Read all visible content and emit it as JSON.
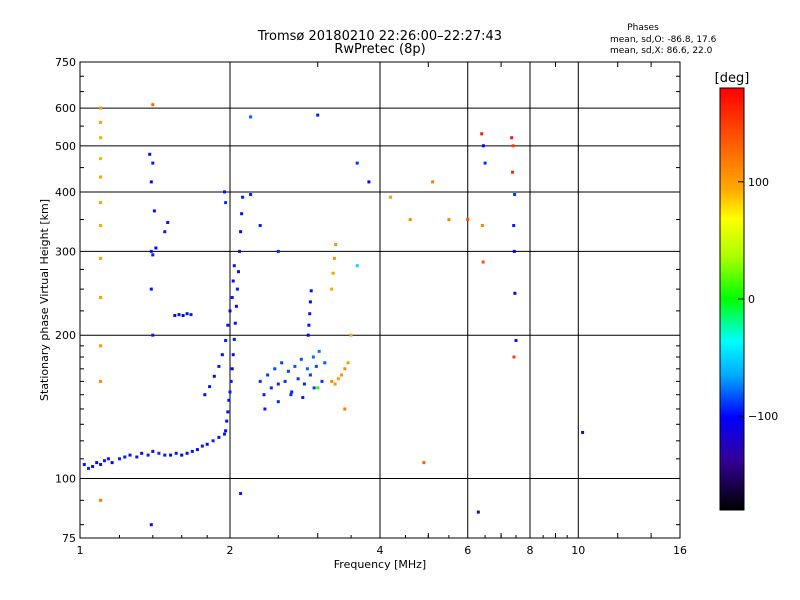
{
  "header": {
    "title_line1": "Tromsø 20180210 22:26:00–22:27:43",
    "title_line2": "RwPretec (8p)"
  },
  "stats": {
    "heading": "Phases",
    "line_o": "mean, sd,O:  -86.8, 17.6",
    "line_x": "mean, sd,X:  86.6, 22.0"
  },
  "colorbar": {
    "unit": "[deg]",
    "range": [
      -180,
      180
    ],
    "ticks": [
      100,
      0,
      -100
    ],
    "tick_labels": [
      "100",
      "0",
      "−100"
    ]
  },
  "chart_data": {
    "type": "scatter",
    "xlabel": "Frequency [MHz]",
    "ylabel": "Stationary phase Virtual Height [km]",
    "x_scale": "log",
    "y_scale": "log",
    "xlim": [
      1,
      16
    ],
    "ylim": [
      75,
      750
    ],
    "xticks": [
      1,
      2,
      4,
      6,
      8,
      10,
      16
    ],
    "xtick_labels": [
      "1",
      "2",
      "4",
      "6",
      "8",
      "10",
      "16"
    ],
    "yticks": [
      75,
      100,
      200,
      300,
      400,
      500,
      600,
      750
    ],
    "ytick_labels": [
      "75",
      "100",
      "200",
      "300",
      "400",
      "500",
      "600",
      "750"
    ],
    "grid": true,
    "series_descriptions": [
      "Low trace (blue, phase ~ -100)",
      "E layer rise near 2 MHz",
      "Ramp near 2 MHz",
      "Cluster 2.3–3.2 MHz",
      "Steep trace ~2.9 MHz",
      "Plateau near 1.6 MHz",
      "Scattered echoes",
      "Yellow echoes ~3.2–3.5 MHz",
      "Echoes near 1.1 MHz",
      "Echoes near 1.4 MHz",
      "Echoes near 6.5 MHz",
      "Echoes near 7.4 MHz",
      "Misc echoes"
    ],
    "series": [
      {
        "points": [
          [
            1.02,
            107,
            -95
          ],
          [
            1.04,
            105,
            -92
          ],
          [
            1.06,
            106,
            -98
          ],
          [
            1.08,
            108,
            -100
          ],
          [
            1.1,
            107,
            -96
          ],
          [
            1.12,
            109,
            -94
          ],
          [
            1.14,
            110,
            -97
          ],
          [
            1.16,
            108,
            -99
          ],
          [
            1.2,
            110,
            -93
          ],
          [
            1.23,
            111,
            -95
          ],
          [
            1.26,
            112,
            -98
          ],
          [
            1.3,
            111,
            -96
          ],
          [
            1.33,
            113,
            -100
          ],
          [
            1.37,
            112,
            -94
          ],
          [
            1.4,
            114,
            -97
          ],
          [
            1.44,
            113,
            -92
          ],
          [
            1.48,
            112,
            -95
          ],
          [
            1.52,
            112,
            -98
          ],
          [
            1.56,
            113,
            -96
          ],
          [
            1.6,
            112,
            -100
          ],
          [
            1.64,
            113,
            -97
          ],
          [
            1.68,
            114,
            -95
          ],
          [
            1.72,
            115,
            -99
          ],
          [
            1.76,
            117,
            -96
          ],
          [
            1.8,
            118,
            -98
          ],
          [
            1.85,
            120,
            -94
          ],
          [
            1.9,
            122,
            -97
          ],
          [
            1.95,
            124,
            -95
          ]
        ]
      },
      {
        "points": [
          [
            1.96,
            126,
            -100
          ],
          [
            1.97,
            132,
            -98
          ],
          [
            1.98,
            138,
            -96
          ],
          [
            1.99,
            146,
            -99
          ],
          [
            2.0,
            152,
            -95
          ],
          [
            2.01,
            160,
            -97
          ],
          [
            2.02,
            170,
            -100
          ],
          [
            2.03,
            182,
            -98
          ],
          [
            2.04,
            196,
            -96
          ],
          [
            2.05,
            212,
            -97
          ],
          [
            2.06,
            230,
            -99
          ],
          [
            2.07,
            250,
            -95
          ],
          [
            2.08,
            272,
            -98
          ],
          [
            2.09,
            300,
            -96
          ],
          [
            2.1,
            330,
            -100
          ],
          [
            2.11,
            360,
            -97
          ],
          [
            2.12,
            390,
            -95
          ]
        ]
      },
      {
        "points": [
          [
            1.78,
            150,
            -97
          ],
          [
            1.82,
            156,
            -95
          ],
          [
            1.86,
            164,
            -99
          ],
          [
            1.9,
            172,
            -96
          ],
          [
            1.93,
            182,
            -98
          ],
          [
            1.96,
            195,
            -94
          ],
          [
            1.98,
            210,
            -97
          ],
          [
            2.0,
            225,
            -100
          ],
          [
            2.02,
            240,
            -96
          ],
          [
            2.03,
            260,
            -98
          ],
          [
            2.04,
            280,
            -95
          ]
        ]
      },
      {
        "points": [
          [
            2.3,
            160,
            -90
          ],
          [
            2.34,
            150,
            -95
          ],
          [
            2.38,
            165,
            -88
          ],
          [
            2.42,
            155,
            -92
          ],
          [
            2.46,
            170,
            -85
          ],
          [
            2.5,
            158,
            -93
          ],
          [
            2.54,
            175,
            -88
          ],
          [
            2.58,
            160,
            -90
          ],
          [
            2.62,
            168,
            -86
          ],
          [
            2.66,
            152,
            -95
          ],
          [
            2.7,
            172,
            -82
          ],
          [
            2.74,
            162,
            -90
          ],
          [
            2.78,
            178,
            -84
          ],
          [
            2.82,
            158,
            -92
          ],
          [
            2.86,
            170,
            -80
          ],
          [
            2.9,
            165,
            -88
          ],
          [
            2.94,
            180,
            -78
          ],
          [
            2.98,
            172,
            -85
          ],
          [
            3.02,
            185,
            -76
          ],
          [
            3.06,
            160,
            -90
          ],
          [
            3.1,
            175,
            -82
          ],
          [
            2.35,
            140,
            -95
          ],
          [
            2.5,
            145,
            -92
          ],
          [
            2.65,
            150,
            -90
          ],
          [
            2.8,
            148,
            -94
          ],
          [
            2.95,
            155,
            -88
          ]
        ]
      },
      {
        "points": [
          [
            2.87,
            200,
            -100
          ],
          [
            2.88,
            210,
            -98
          ],
          [
            2.89,
            222,
            -96
          ],
          [
            2.9,
            235,
            -99
          ],
          [
            2.91,
            248,
            -97
          ]
        ]
      },
      {
        "points": [
          [
            1.55,
            220,
            -98
          ],
          [
            1.58,
            221,
            -96
          ],
          [
            1.61,
            220,
            -99
          ],
          [
            1.64,
            222,
            -97
          ],
          [
            1.67,
            221,
            -95
          ]
        ]
      },
      {
        "points": [
          [
            1.95,
            400,
            -98
          ],
          [
            2.2,
            395,
            -96
          ],
          [
            2.3,
            340,
            -94
          ],
          [
            2.5,
            300,
            -92
          ],
          [
            1.48,
            330,
            -95
          ],
          [
            1.5,
            345,
            -97
          ],
          [
            1.39,
            300,
            -96
          ],
          [
            1.42,
            305,
            -99
          ]
        ]
      },
      {
        "points": [
          [
            3.2,
            160,
            110
          ],
          [
            3.25,
            158,
            105
          ],
          [
            3.3,
            162,
            100
          ],
          [
            3.35,
            165,
            108
          ],
          [
            3.4,
            170,
            112
          ],
          [
            3.45,
            175,
            104
          ],
          [
            3.2,
            250,
            95
          ],
          [
            3.22,
            270,
            100
          ],
          [
            3.24,
            290,
            105
          ],
          [
            3.26,
            310,
            108
          ],
          [
            3.5,
            200,
            95
          ]
        ]
      },
      {
        "points": [
          [
            1.1,
            600,
            100
          ],
          [
            1.1,
            560,
            98
          ],
          [
            1.1,
            520,
            95
          ],
          [
            1.1,
            470,
            92
          ],
          [
            1.1,
            430,
            100
          ],
          [
            1.1,
            380,
            96
          ],
          [
            1.1,
            340,
            94
          ],
          [
            1.1,
            290,
            98
          ],
          [
            1.1,
            240,
            100
          ],
          [
            1.1,
            190,
            105
          ],
          [
            1.1,
            160,
            110
          ],
          [
            1.1,
            90,
            120
          ]
        ]
      },
      {
        "points": [
          [
            1.38,
            480,
            -98
          ],
          [
            1.4,
            460,
            -96
          ],
          [
            1.39,
            420,
            -99
          ],
          [
            1.41,
            365,
            -97
          ],
          [
            1.4,
            295,
            -95
          ],
          [
            1.39,
            250,
            -97
          ],
          [
            1.4,
            200,
            -96
          ],
          [
            1.39,
            80,
            -98
          ],
          [
            1.4,
            610,
            130
          ]
        ]
      },
      {
        "points": [
          [
            6.4,
            530,
            170
          ],
          [
            6.45,
            500,
            -100
          ],
          [
            6.5,
            460,
            -90
          ],
          [
            6.42,
            340,
            110
          ],
          [
            6.44,
            285,
            140
          ],
          [
            6.3,
            85,
            -130
          ]
        ]
      },
      {
        "points": [
          [
            7.35,
            520,
            170
          ],
          [
            7.4,
            500,
            150
          ],
          [
            7.45,
            395,
            -90
          ],
          [
            7.42,
            340,
            -95
          ],
          [
            7.44,
            300,
            -100
          ],
          [
            7.46,
            245,
            -120
          ],
          [
            7.5,
            195,
            -95
          ],
          [
            7.43,
            180,
            150
          ],
          [
            7.38,
            440,
            160
          ]
        ]
      },
      {
        "points": [
          [
            2.2,
            575,
            -80
          ],
          [
            3.0,
            580,
            -95
          ],
          [
            3.6,
            460,
            -90
          ],
          [
            3.8,
            420,
            -110
          ],
          [
            4.2,
            390,
            100
          ],
          [
            5.1,
            420,
            120
          ],
          [
            4.6,
            350,
            110
          ],
          [
            5.5,
            350,
            115
          ],
          [
            6.0,
            350,
            140
          ],
          [
            10.2,
            125,
            -130
          ],
          [
            4.9,
            108,
            130
          ],
          [
            2.1,
            93,
            -95
          ],
          [
            1.96,
            380,
            -90
          ],
          [
            3.0,
            155,
            10
          ],
          [
            3.4,
            140,
            120
          ],
          [
            3.6,
            280,
            -50
          ]
        ]
      }
    ]
  }
}
